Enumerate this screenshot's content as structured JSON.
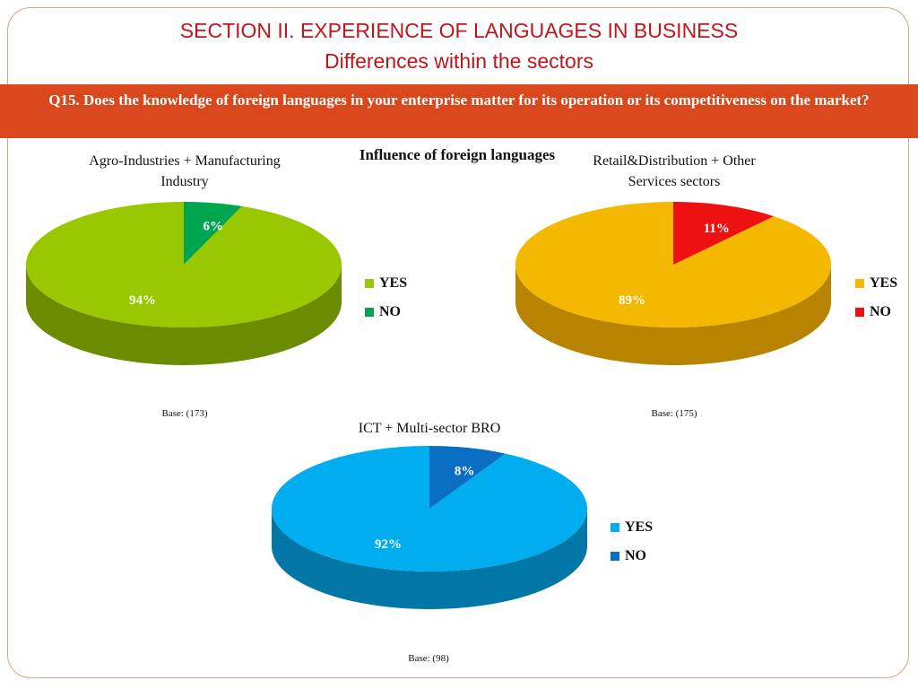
{
  "header": {
    "title": "SECTION II. EXPERIENCE OF LANGUAGES IN BUSINESS",
    "subtitle": "Differences within the sectors"
  },
  "question": "Q15. Does the knowledge of foreign languages in your enterprise matter for its operation or its competitiveness on the market?",
  "center_label": "Influence of foreign languages",
  "colors": {
    "title": "#c0161b",
    "banner": "#d8481c"
  },
  "chart_data": [
    {
      "type": "pie",
      "title": "Agro-Industries + Manufacturing Industry",
      "base": "Base: (173)",
      "slices": [
        {
          "name": "YES",
          "value": 94,
          "label": "94%",
          "color": "#99c800",
          "shade": "#6b8c00"
        },
        {
          "name": "NO",
          "value": 6,
          "label": "6%",
          "color": "#00a550",
          "shade": "#007a3a"
        }
      ]
    },
    {
      "type": "pie",
      "title": "Retail&Distribution + Other Services sectors",
      "base": "Base: (175)",
      "slices": [
        {
          "name": "YES",
          "value": 89,
          "label": "89%",
          "color": "#f5b800",
          "shade": "#b88400"
        },
        {
          "name": "NO",
          "value": 11,
          "label": "11%",
          "color": "#ee1111",
          "shade": "#a80b0b"
        }
      ]
    },
    {
      "type": "pie",
      "title": "ICT + Multi-sector BRO",
      "base": "Base: (98)",
      "slices": [
        {
          "name": "YES",
          "value": 92,
          "label": "92%",
          "color": "#00adef",
          "shade": "#0077a6"
        },
        {
          "name": "NO",
          "value": 8,
          "label": "8%",
          "color": "#0a6fc2",
          "shade": "#064f8a"
        }
      ]
    }
  ]
}
